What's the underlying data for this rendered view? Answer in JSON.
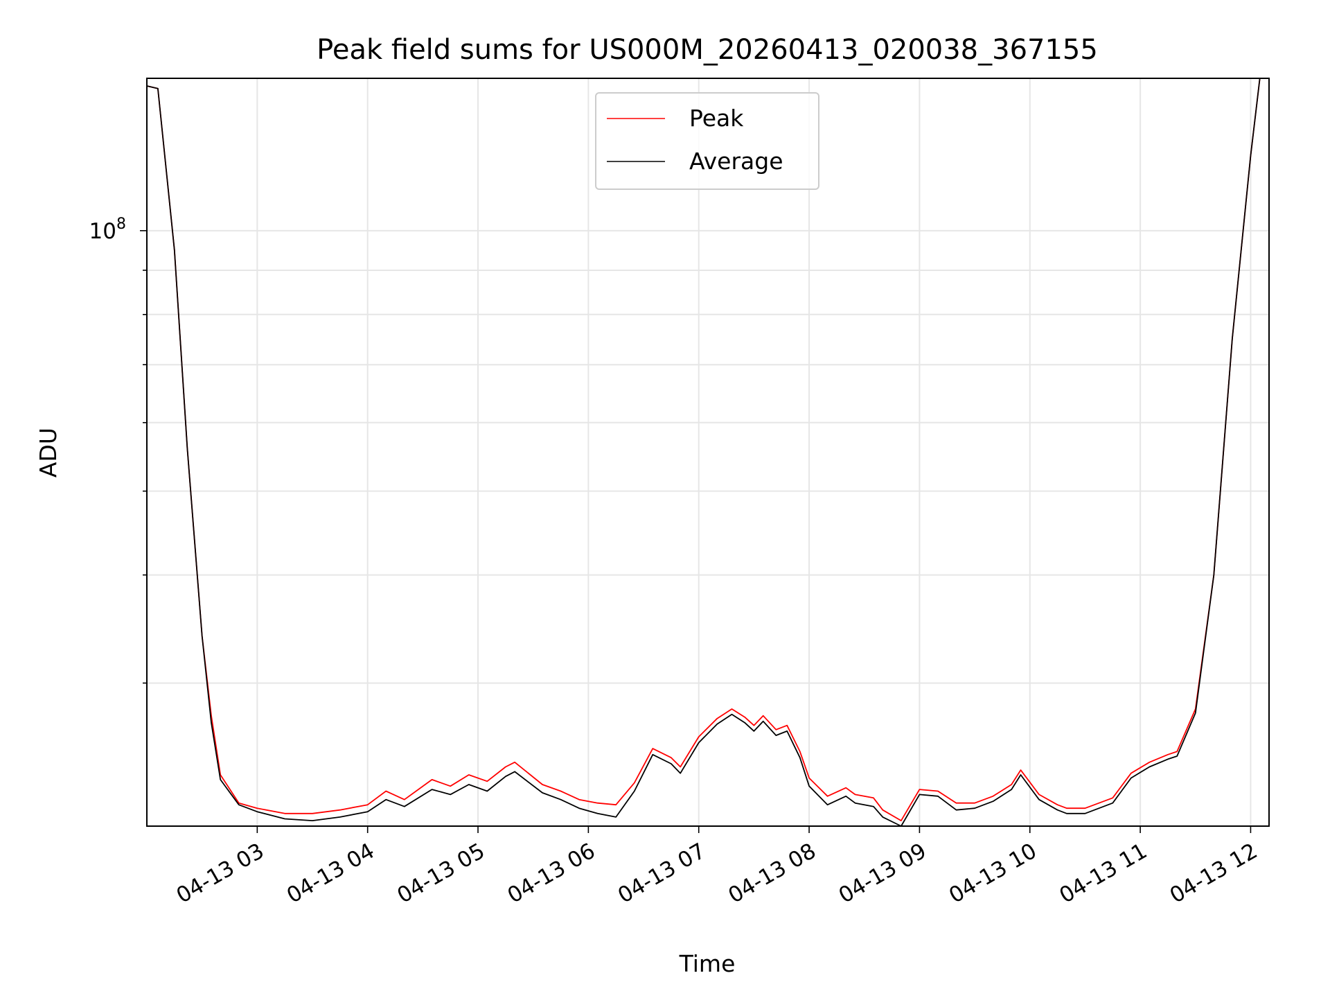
{
  "chart_data": {
    "type": "line",
    "title": "Peak field sums for US000M_20260413_020038_367155",
    "xlabel": "Time",
    "ylabel": "ADU",
    "x_ticks": [
      "04-13 03",
      "04-13 04",
      "04-13 05",
      "04-13 06",
      "04-13 07",
      "04-13 08",
      "04-13 09",
      "04-13 10",
      "04-13 11",
      "04-13 12"
    ],
    "y_ticks": [
      {
        "value": 100000000,
        "base": "10",
        "exponent": "8"
      }
    ],
    "yscale": "log",
    "ylim": [
      20500000,
      150000000
    ],
    "xlim": [
      "04-13 02:00",
      "04-13 12:10"
    ],
    "grid": true,
    "legend_position": "top-center",
    "series": [
      {
        "name": "Peak",
        "color": "#ff0000",
        "x": [
          "04-13 02:00",
          "04-13 02:06",
          "04-13 02:15",
          "04-13 02:22",
          "04-13 02:30",
          "04-13 02:35",
          "04-13 02:40",
          "04-13 02:50",
          "04-13 03:00",
          "04-13 03:15",
          "04-13 03:30",
          "04-13 03:45",
          "04-13 04:00",
          "04-13 04:10",
          "04-13 04:20",
          "04-13 04:35",
          "04-13 04:45",
          "04-13 04:55",
          "04-13 05:05",
          "04-13 05:15",
          "04-13 05:20",
          "04-13 05:35",
          "04-13 05:45",
          "04-13 05:55",
          "04-13 06:05",
          "04-13 06:15",
          "04-13 06:25",
          "04-13 06:35",
          "04-13 06:45",
          "04-13 06:50",
          "04-13 07:00",
          "04-13 07:10",
          "04-13 07:18",
          "04-13 07:25",
          "04-13 07:30",
          "04-13 07:35",
          "04-13 07:42",
          "04-13 07:48",
          "04-13 07:55",
          "04-13 08:00",
          "04-13 08:10",
          "04-13 08:20",
          "04-13 08:25",
          "04-13 08:35",
          "04-13 08:40",
          "04-13 08:50",
          "04-13 09:00",
          "04-13 09:10",
          "04-13 09:20",
          "04-13 09:30",
          "04-13 09:40",
          "04-13 09:50",
          "04-13 09:55",
          "04-13 10:05",
          "04-13 10:15",
          "04-13 10:20",
          "04-13 10:30",
          "04-13 10:45",
          "04-13 10:55",
          "04-13 11:05",
          "04-13 11:15",
          "04-13 11:20",
          "04-13 11:30",
          "04-13 11:40",
          "04-13 11:50",
          "04-13 12:00",
          "04-13 12:05"
        ],
        "values": [
          147000000,
          146000000,
          95000000,
          56000000,
          34000000,
          27500000,
          23500000,
          21800000,
          21500000,
          21200000,
          21200000,
          21400000,
          21700000,
          22500000,
          22000000,
          23200000,
          22800000,
          23500000,
          23100000,
          24000000,
          24300000,
          22900000,
          22500000,
          22000000,
          21800000,
          21700000,
          23000000,
          25200000,
          24600000,
          24000000,
          26000000,
          27300000,
          28000000,
          27400000,
          26800000,
          27500000,
          26500000,
          26800000,
          25000000,
          23300000,
          22200000,
          22700000,
          22300000,
          22100000,
          21400000,
          20800000,
          22600000,
          22500000,
          21800000,
          21800000,
          22200000,
          22900000,
          23800000,
          22300000,
          21700000,
          21500000,
          21500000,
          22100000,
          23600000,
          24300000,
          24800000,
          25000000,
          28000000,
          40000000,
          75000000,
          122000000,
          150000000
        ]
      },
      {
        "name": "Average",
        "color": "#000000",
        "x": [
          "04-13 02:00",
          "04-13 02:06",
          "04-13 02:15",
          "04-13 02:22",
          "04-13 02:30",
          "04-13 02:35",
          "04-13 02:40",
          "04-13 02:50",
          "04-13 03:00",
          "04-13 03:15",
          "04-13 03:30",
          "04-13 03:45",
          "04-13 04:00",
          "04-13 04:10",
          "04-13 04:20",
          "04-13 04:35",
          "04-13 04:45",
          "04-13 04:55",
          "04-13 05:05",
          "04-13 05:15",
          "04-13 05:20",
          "04-13 05:35",
          "04-13 05:45",
          "04-13 05:55",
          "04-13 06:05",
          "04-13 06:15",
          "04-13 06:25",
          "04-13 06:35",
          "04-13 06:45",
          "04-13 06:50",
          "04-13 07:00",
          "04-13 07:10",
          "04-13 07:18",
          "04-13 07:25",
          "04-13 07:30",
          "04-13 07:35",
          "04-13 07:42",
          "04-13 07:48",
          "04-13 07:55",
          "04-13 08:00",
          "04-13 08:10",
          "04-13 08:20",
          "04-13 08:25",
          "04-13 08:35",
          "04-13 08:40",
          "04-13 08:50",
          "04-13 09:00",
          "04-13 09:10",
          "04-13 09:20",
          "04-13 09:30",
          "04-13 09:40",
          "04-13 09:50",
          "04-13 09:55",
          "04-13 10:05",
          "04-13 10:15",
          "04-13 10:20",
          "04-13 10:30",
          "04-13 10:45",
          "04-13 10:55",
          "04-13 11:05",
          "04-13 11:15",
          "04-13 11:20",
          "04-13 11:30",
          "04-13 11:40",
          "04-13 11:50",
          "04-13 12:00",
          "04-13 12:05"
        ],
        "values": [
          147000000,
          146000000,
          95000000,
          56000000,
          34000000,
          27000000,
          23200000,
          21700000,
          21300000,
          20900000,
          20800000,
          21000000,
          21300000,
          22000000,
          21600000,
          22600000,
          22300000,
          22900000,
          22500000,
          23400000,
          23700000,
          22400000,
          22000000,
          21500000,
          21200000,
          21000000,
          22500000,
          24800000,
          24200000,
          23600000,
          25600000,
          26900000,
          27600000,
          27000000,
          26400000,
          27100000,
          26100000,
          26400000,
          24600000,
          22800000,
          21700000,
          22200000,
          21800000,
          21600000,
          21000000,
          20500000,
          22300000,
          22200000,
          21400000,
          21500000,
          21900000,
          22600000,
          23500000,
          22000000,
          21400000,
          21200000,
          21200000,
          21800000,
          23300000,
          24000000,
          24500000,
          24700000,
          27700000,
          40000000,
          75000000,
          122000000,
          150000000
        ]
      }
    ]
  }
}
